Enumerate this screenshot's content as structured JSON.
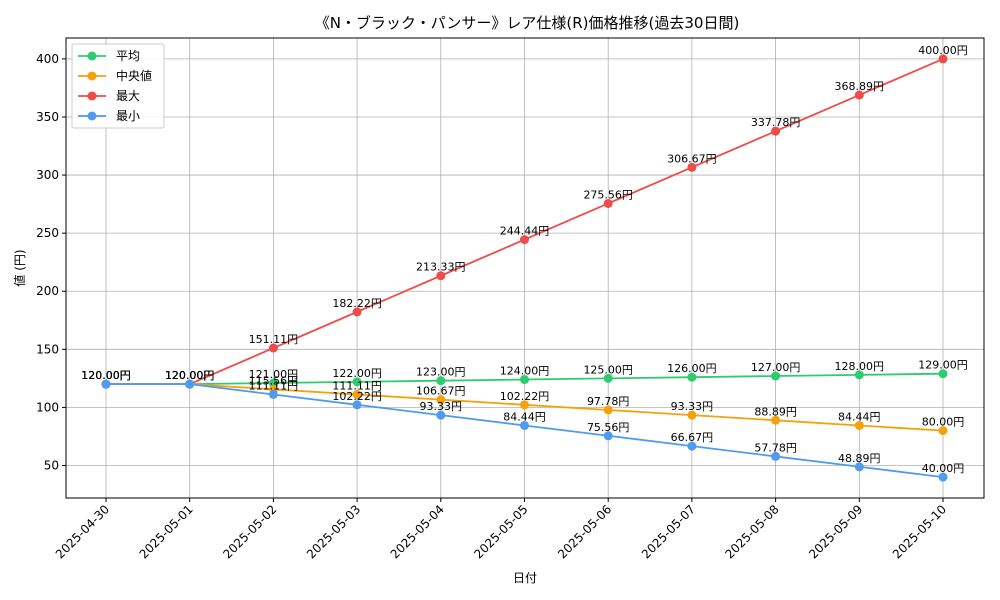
{
  "chart_data": {
    "type": "line",
    "title": "《N・ブラック・パンサー》レア仕様(R)価格推移(過去30日間)",
    "xlabel": "日付",
    "ylabel": "値 (円)",
    "categories": [
      "2025-04-30",
      "2025-05-01",
      "2025-05-02",
      "2025-05-03",
      "2025-05-04",
      "2025-05-05",
      "2025-05-06",
      "2025-05-07",
      "2025-05-08",
      "2025-05-09",
      "2025-05-10"
    ],
    "ylim": [
      22,
      418
    ],
    "yticks": [
      50,
      100,
      150,
      200,
      250,
      300,
      350,
      400
    ],
    "grid": true,
    "legend_position": "top-left",
    "label_suffix": "円",
    "series": [
      {
        "name": "平均",
        "color": "#2ecc71",
        "values": [
          120,
          120,
          121,
          122,
          123,
          124,
          125,
          126,
          127,
          128,
          129
        ]
      },
      {
        "name": "中央値",
        "color": "#f5a20a",
        "values": [
          120,
          120,
          115.56,
          111.11,
          106.67,
          102.22,
          97.78,
          93.33,
          88.89,
          84.44,
          80
        ]
      },
      {
        "name": "最大",
        "color": "#ef4b4b",
        "values": [
          120,
          120,
          151.11,
          182.22,
          213.33,
          244.44,
          275.56,
          306.67,
          337.78,
          368.89,
          400
        ]
      },
      {
        "name": "最小",
        "color": "#4f9bf0",
        "values": [
          120,
          120,
          111.11,
          102.22,
          93.33,
          84.44,
          75.56,
          66.67,
          57.78,
          48.89,
          40
        ]
      }
    ]
  }
}
